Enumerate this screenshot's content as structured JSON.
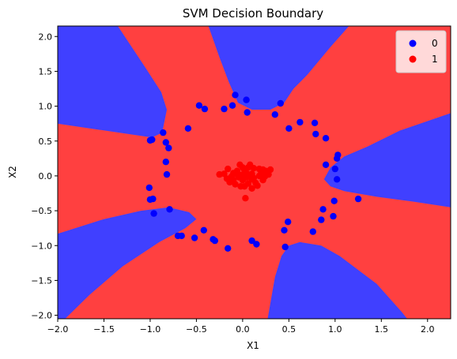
{
  "chart_data": {
    "type": "scatter",
    "title": "SVM Decision Boundary",
    "xlabel": "X1",
    "ylabel": "X2",
    "xlim": [
      -2.0,
      2.25
    ],
    "ylim": [
      -2.05,
      2.15
    ],
    "xticks": [
      -2.0,
      -1.5,
      -1.0,
      -0.5,
      0.0,
      0.5,
      1.0,
      1.5,
      2.0
    ],
    "yticks": [
      -2.0,
      -1.5,
      -1.0,
      -0.5,
      0.0,
      0.5,
      1.0,
      1.5,
      2.0
    ],
    "xtick_labels": [
      "−2.0",
      "−1.5",
      "−1.0",
      "−0.5",
      "0.0",
      "0.5",
      "1.0",
      "1.5",
      "2.0"
    ],
    "ytick_labels": [
      "−2.0",
      "−1.5",
      "−1.0",
      "−0.5",
      "0.0",
      "0.5",
      "1.0",
      "1.5",
      "2.0"
    ],
    "grid": false,
    "legend_position": "top-right",
    "background_region": {
      "class": "1",
      "color": "#ff4040"
    },
    "regions": [
      {
        "class": "0",
        "color": "#4040ff",
        "polygon": [
          [
            -2.0,
            2.15
          ],
          [
            -1.35,
            2.15
          ],
          [
            -1.05,
            1.55
          ],
          [
            -0.88,
            1.2
          ],
          [
            -0.82,
            0.95
          ],
          [
            -0.87,
            0.62
          ],
          [
            -0.98,
            0.55
          ],
          [
            -2.0,
            0.75
          ]
        ]
      },
      {
        "class": "0",
        "color": "#4040ff",
        "polygon": [
          [
            -0.37,
            2.15
          ],
          [
            1.15,
            2.15
          ],
          [
            0.95,
            1.85
          ],
          [
            0.7,
            1.45
          ],
          [
            0.55,
            1.25
          ],
          [
            0.45,
            1.05
          ],
          [
            0.3,
            0.95
          ],
          [
            0.1,
            0.95
          ],
          [
            -0.05,
            1.05
          ],
          [
            -0.15,
            1.35
          ],
          [
            -0.25,
            1.7
          ]
        ]
      },
      {
        "class": "0",
        "color": "#4040ff",
        "polygon": [
          [
            2.25,
            0.9
          ],
          [
            1.7,
            0.65
          ],
          [
            1.35,
            0.42
          ],
          [
            1.1,
            0.28
          ],
          [
            0.95,
            0.12
          ],
          [
            0.88,
            -0.05
          ],
          [
            0.95,
            -0.15
          ],
          [
            1.1,
            -0.22
          ],
          [
            1.45,
            -0.3
          ],
          [
            1.85,
            -0.37
          ],
          [
            2.25,
            -0.45
          ]
        ]
      },
      {
        "class": "0",
        "color": "#4040ff",
        "polygon": [
          [
            -2.0,
            -0.83
          ],
          [
            -1.5,
            -0.62
          ],
          [
            -1.1,
            -0.5
          ],
          [
            -0.8,
            -0.45
          ],
          [
            -0.58,
            -0.52
          ],
          [
            -0.5,
            -0.62
          ],
          [
            -0.62,
            -0.75
          ],
          [
            -0.9,
            -0.95
          ],
          [
            -1.3,
            -1.3
          ],
          [
            -1.65,
            -1.7
          ],
          [
            -1.92,
            -2.05
          ],
          [
            -2.0,
            -2.05
          ]
        ]
      },
      {
        "class": "0",
        "color": "#4040ff",
        "polygon": [
          [
            0.27,
            -2.05
          ],
          [
            0.35,
            -1.45
          ],
          [
            0.42,
            -1.15
          ],
          [
            0.5,
            -1.0
          ],
          [
            0.62,
            -0.95
          ],
          [
            0.85,
            -1.0
          ],
          [
            1.05,
            -1.15
          ],
          [
            1.45,
            -1.55
          ],
          [
            1.72,
            -1.95
          ],
          [
            1.78,
            -2.05
          ]
        ]
      }
    ],
    "series": [
      {
        "name": "0",
        "color": "#0000ff",
        "points": [
          [
            -1.0,
            0.51
          ],
          [
            -0.98,
            0.52
          ],
          [
            -0.86,
            0.62
          ],
          [
            -0.83,
            0.48
          ],
          [
            -0.8,
            0.4
          ],
          [
            -0.83,
            0.2
          ],
          [
            -0.82,
            0.02
          ],
          [
            -0.59,
            0.68
          ],
          [
            -0.47,
            1.01
          ],
          [
            -0.41,
            0.96
          ],
          [
            -0.2,
            0.96
          ],
          [
            -0.11,
            1.01
          ],
          [
            -0.08,
            1.16
          ],
          [
            0.04,
            1.09
          ],
          [
            0.05,
            0.91
          ],
          [
            0.35,
            0.88
          ],
          [
            0.41,
            1.04
          ],
          [
            0.5,
            0.68
          ],
          [
            0.62,
            0.77
          ],
          [
            0.78,
            0.76
          ],
          [
            0.79,
            0.6
          ],
          [
            0.9,
            0.54
          ],
          [
            1.03,
            0.3
          ],
          [
            1.02,
            0.25
          ],
          [
            0.9,
            0.16
          ],
          [
            1.0,
            0.1
          ],
          [
            1.02,
            -0.05
          ],
          [
            1.25,
            -0.33
          ],
          [
            0.99,
            -0.36
          ],
          [
            0.98,
            -0.58
          ],
          [
            0.87,
            -0.48
          ],
          [
            0.85,
            -0.63
          ],
          [
            0.76,
            -0.8
          ],
          [
            0.49,
            -0.66
          ],
          [
            0.45,
            -0.78
          ],
          [
            0.46,
            -1.02
          ],
          [
            0.15,
            -0.98
          ],
          [
            0.1,
            -0.93
          ],
          [
            -0.16,
            -1.04
          ],
          [
            -0.3,
            -0.93
          ],
          [
            -0.32,
            -0.91
          ],
          [
            -0.42,
            -0.78
          ],
          [
            -0.52,
            -0.89
          ],
          [
            -0.66,
            -0.86
          ],
          [
            -0.7,
            -0.86
          ],
          [
            -0.79,
            -0.48
          ],
          [
            -0.96,
            -0.54
          ],
          [
            -1.0,
            -0.34
          ],
          [
            -0.97,
            -0.33
          ],
          [
            -1.01,
            -0.17
          ]
        ]
      },
      {
        "name": "1",
        "color": "#ff0000",
        "points": [
          [
            -0.02,
            0.01
          ],
          [
            0.05,
            0.03
          ],
          [
            0.1,
            -0.05
          ],
          [
            -0.1,
            -0.06
          ],
          [
            0.2,
            0.04
          ],
          [
            0.25,
            0.07
          ],
          [
            -0.16,
            0.1
          ],
          [
            0.02,
            -0.15
          ],
          [
            0.06,
            -0.11
          ],
          [
            -0.06,
            0.07
          ],
          [
            0.12,
            0.11
          ],
          [
            0.28,
            0.02
          ],
          [
            0.22,
            -0.06
          ],
          [
            -0.2,
            0.03
          ],
          [
            -0.12,
            -0.01
          ],
          [
            0.08,
            0.16
          ],
          [
            -0.03,
            0.16
          ],
          [
            0.0,
            -0.06
          ],
          [
            0.3,
            0.09
          ],
          [
            0.18,
            0.0
          ],
          [
            -0.08,
            -0.12
          ],
          [
            0.03,
            -0.32
          ],
          [
            0.14,
            -0.1
          ],
          [
            -0.25,
            0.02
          ],
          [
            -0.14,
            -0.09
          ],
          [
            0.02,
            0.08
          ],
          [
            0.1,
            0.03
          ],
          [
            -0.04,
            -0.02
          ],
          [
            0.16,
            -0.14
          ],
          [
            -0.1,
            0.04
          ],
          [
            0.04,
            -0.02
          ],
          [
            0.22,
            0.09
          ],
          [
            0.26,
            0.03
          ],
          [
            0.06,
            0.12
          ],
          [
            -0.02,
            -0.15
          ],
          [
            0.12,
            -0.03
          ],
          [
            0.07,
            0.0
          ],
          [
            -0.06,
            0.02
          ],
          [
            0.0,
            0.12
          ],
          [
            0.1,
            -0.18
          ],
          [
            0.18,
            0.1
          ],
          [
            -0.17,
            -0.04
          ],
          [
            0.24,
            -0.01
          ],
          [
            0.03,
            0.05
          ]
        ]
      }
    ]
  }
}
